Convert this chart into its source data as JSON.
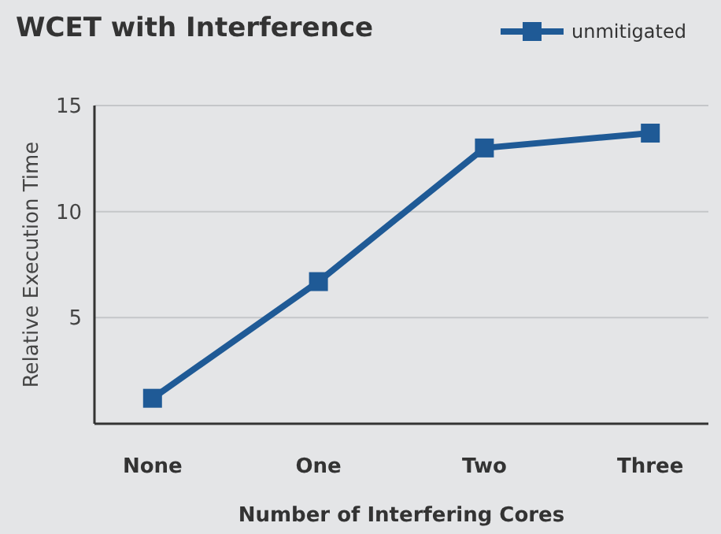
{
  "chart_data": {
    "type": "line",
    "title": "WCET with Interference",
    "xlabel": "Number of Interfering Cores",
    "ylabel": "Relative Execution Time",
    "categories": [
      "None",
      "One",
      "Two",
      "Three"
    ],
    "series": [
      {
        "name": "unmitigated",
        "color": "#1f5a96",
        "values": [
          1.2,
          6.7,
          13.0,
          13.7
        ]
      }
    ],
    "ylim": [
      0,
      15
    ],
    "yticks": [
      5,
      10,
      15
    ],
    "grid": "y",
    "legend": "top right",
    "marker": "square",
    "line_style": "solid"
  }
}
